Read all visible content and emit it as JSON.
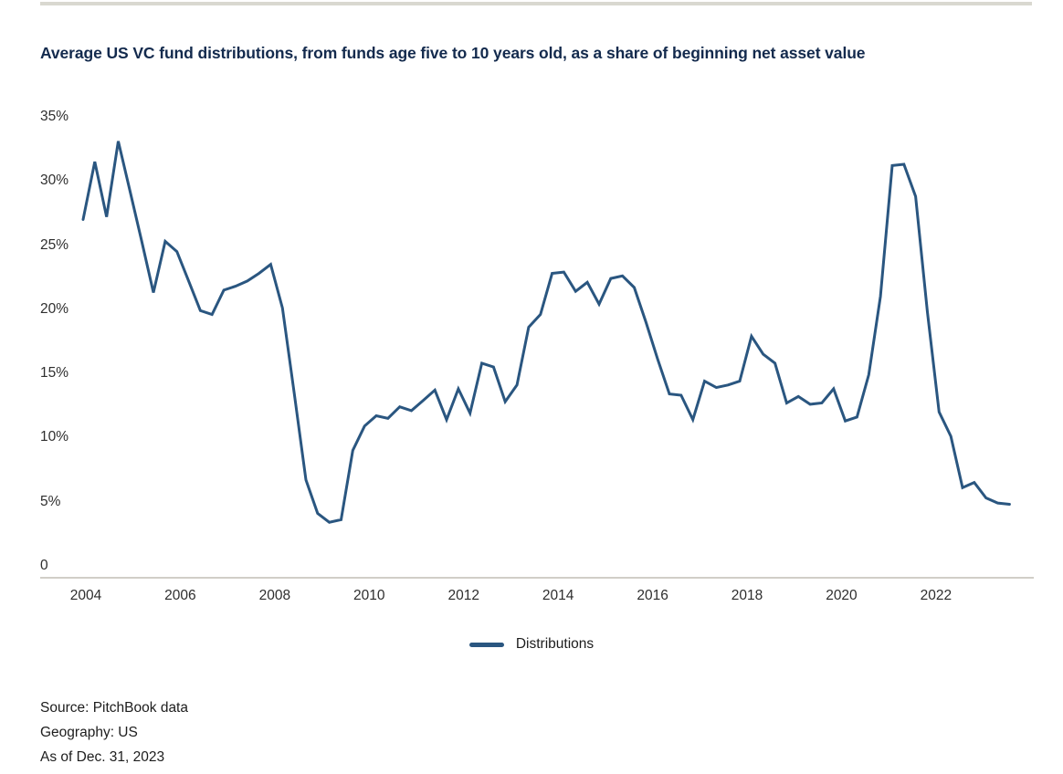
{
  "page": {
    "background": "#ffffff"
  },
  "title": "Average US VC fund distributions, from funds age five to 10 years old, as a share of beginning net asset value",
  "colors": {
    "title_text": "#132a4d",
    "line": "#2a5680",
    "axis_line": "#d1cec7",
    "top_rule": "#d9d8d0",
    "tick_text": "#2e2e2e",
    "footer_text": "#1d1d1d"
  },
  "chart_data": {
    "type": "line",
    "title": "Average US VC fund distributions, from funds age five to 10 years old, as a share of beginning net asset value",
    "frequency": "quarterly",
    "xlabel": "",
    "ylabel": "",
    "ylim": [
      0,
      35
    ],
    "grid": false,
    "legend_position": "bottom-center",
    "x_ticks": [
      "2004",
      "2006",
      "2008",
      "2010",
      "2012",
      "2014",
      "2016",
      "2018",
      "2020",
      "2022"
    ],
    "y_ticks": [
      {
        "label": "35%",
        "value": 35
      },
      {
        "label": "30%",
        "value": 30
      },
      {
        "label": "25%",
        "value": 25
      },
      {
        "label": "20%",
        "value": 20
      },
      {
        "label": "15%",
        "value": 15
      },
      {
        "label": "10%",
        "value": 10
      },
      {
        "label": "5%",
        "value": 5
      },
      {
        "label": "0",
        "value": 0
      }
    ],
    "categories": [
      "2004 Q1",
      "2004 Q2",
      "2004 Q3",
      "2004 Q4",
      "2005 Q1",
      "2005 Q2",
      "2005 Q3",
      "2005 Q4",
      "2006 Q1",
      "2006 Q2",
      "2006 Q3",
      "2006 Q4",
      "2007 Q1",
      "2007 Q2",
      "2007 Q3",
      "2007 Q4",
      "2008 Q1",
      "2008 Q2",
      "2008 Q3",
      "2008 Q4",
      "2009 Q1",
      "2009 Q2",
      "2009 Q3",
      "2009 Q4",
      "2010 Q1",
      "2010 Q2",
      "2010 Q3",
      "2010 Q4",
      "2011 Q1",
      "2011 Q2",
      "2011 Q3",
      "2011 Q4",
      "2012 Q1",
      "2012 Q2",
      "2012 Q3",
      "2012 Q4",
      "2013 Q1",
      "2013 Q2",
      "2013 Q3",
      "2013 Q4",
      "2014 Q1",
      "2014 Q2",
      "2014 Q3",
      "2014 Q4",
      "2015 Q1",
      "2015 Q2",
      "2015 Q3",
      "2015 Q4",
      "2016 Q1",
      "2016 Q2",
      "2016 Q3",
      "2016 Q4",
      "2017 Q1",
      "2017 Q2",
      "2017 Q3",
      "2017 Q4",
      "2018 Q1",
      "2018 Q2",
      "2018 Q3",
      "2018 Q4",
      "2019 Q1",
      "2019 Q2",
      "2019 Q3",
      "2019 Q4",
      "2020 Q1",
      "2020 Q2",
      "2020 Q3",
      "2020 Q4",
      "2021 Q1",
      "2021 Q2",
      "2021 Q3",
      "2021 Q4",
      "2022 Q1",
      "2022 Q2",
      "2022 Q3",
      "2022 Q4",
      "2023 Q1",
      "2023 Q2",
      "2023 Q3",
      "2023 Q4"
    ],
    "series": [
      {
        "name": "Distributions",
        "values": [
          27.0,
          31.5,
          27.2,
          33.1,
          29.2,
          25.3,
          21.3,
          25.3,
          24.5,
          22.2,
          19.9,
          19.6,
          21.5,
          21.8,
          22.2,
          22.8,
          23.5,
          20.1,
          13.5,
          6.7,
          4.1,
          3.4,
          3.6,
          9.0,
          10.9,
          11.7,
          11.5,
          12.4,
          12.1,
          12.9,
          13.7,
          11.4,
          13.8,
          11.9,
          15.8,
          15.5,
          12.8,
          14.1,
          18.6,
          19.6,
          22.8,
          22.9,
          21.4,
          22.1,
          20.4,
          22.4,
          22.6,
          21.7,
          19.0,
          16.1,
          13.4,
          13.3,
          11.4,
          14.4,
          13.9,
          14.1,
          14.4,
          17.9,
          16.5,
          15.8,
          12.7,
          13.2,
          12.6,
          12.7,
          13.8,
          11.3,
          11.6,
          14.9,
          21.0,
          31.2,
          31.3,
          28.8,
          19.8,
          12.0,
          10.1,
          6.1,
          6.5,
          5.3,
          4.9,
          4.8
        ]
      }
    ]
  },
  "legend": {
    "label": "Distributions"
  },
  "footer": {
    "source": "Source: PitchBook data",
    "geography": "Geography: US",
    "as_of": "As of Dec. 31, 2023"
  }
}
